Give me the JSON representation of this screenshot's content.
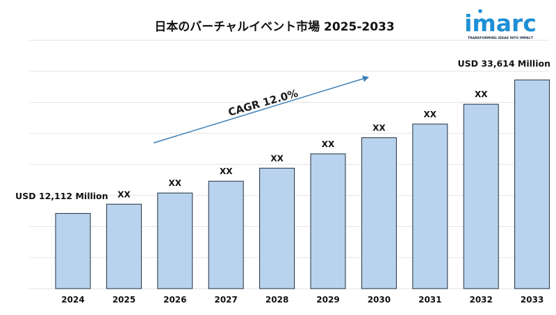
{
  "brand": {
    "name": "imarc",
    "tagline": "TRANSFORMING IDEAS INTO IMPACT",
    "color": "#1e8fd6"
  },
  "chart_data": {
    "type": "bar",
    "title": "日本のバーチャルイベント市場 2025-2033",
    "categories": [
      "2024",
      "2025",
      "2026",
      "2027",
      "2028",
      "2029",
      "2030",
      "2031",
      "2032",
      "2033"
    ],
    "values": [
      12112,
      13600,
      15400,
      17300,
      19400,
      21700,
      24300,
      26500,
      29700,
      33614
    ],
    "data_labels": [
      "USD 12,112 Million",
      "XX",
      "XX",
      "XX",
      "XX",
      "XX",
      "XX",
      "XX",
      "XX",
      "USD 33,614 Million"
    ],
    "ylim": [
      0,
      40000
    ],
    "grid": true,
    "bar_color": "#b9d3ee",
    "bar_edge_color": "#1f2d3d",
    "grid_color": "#e3e3e3",
    "annotation": {
      "text": "CAGR 12.0%",
      "arrow_color": "#3d7fb8"
    }
  }
}
